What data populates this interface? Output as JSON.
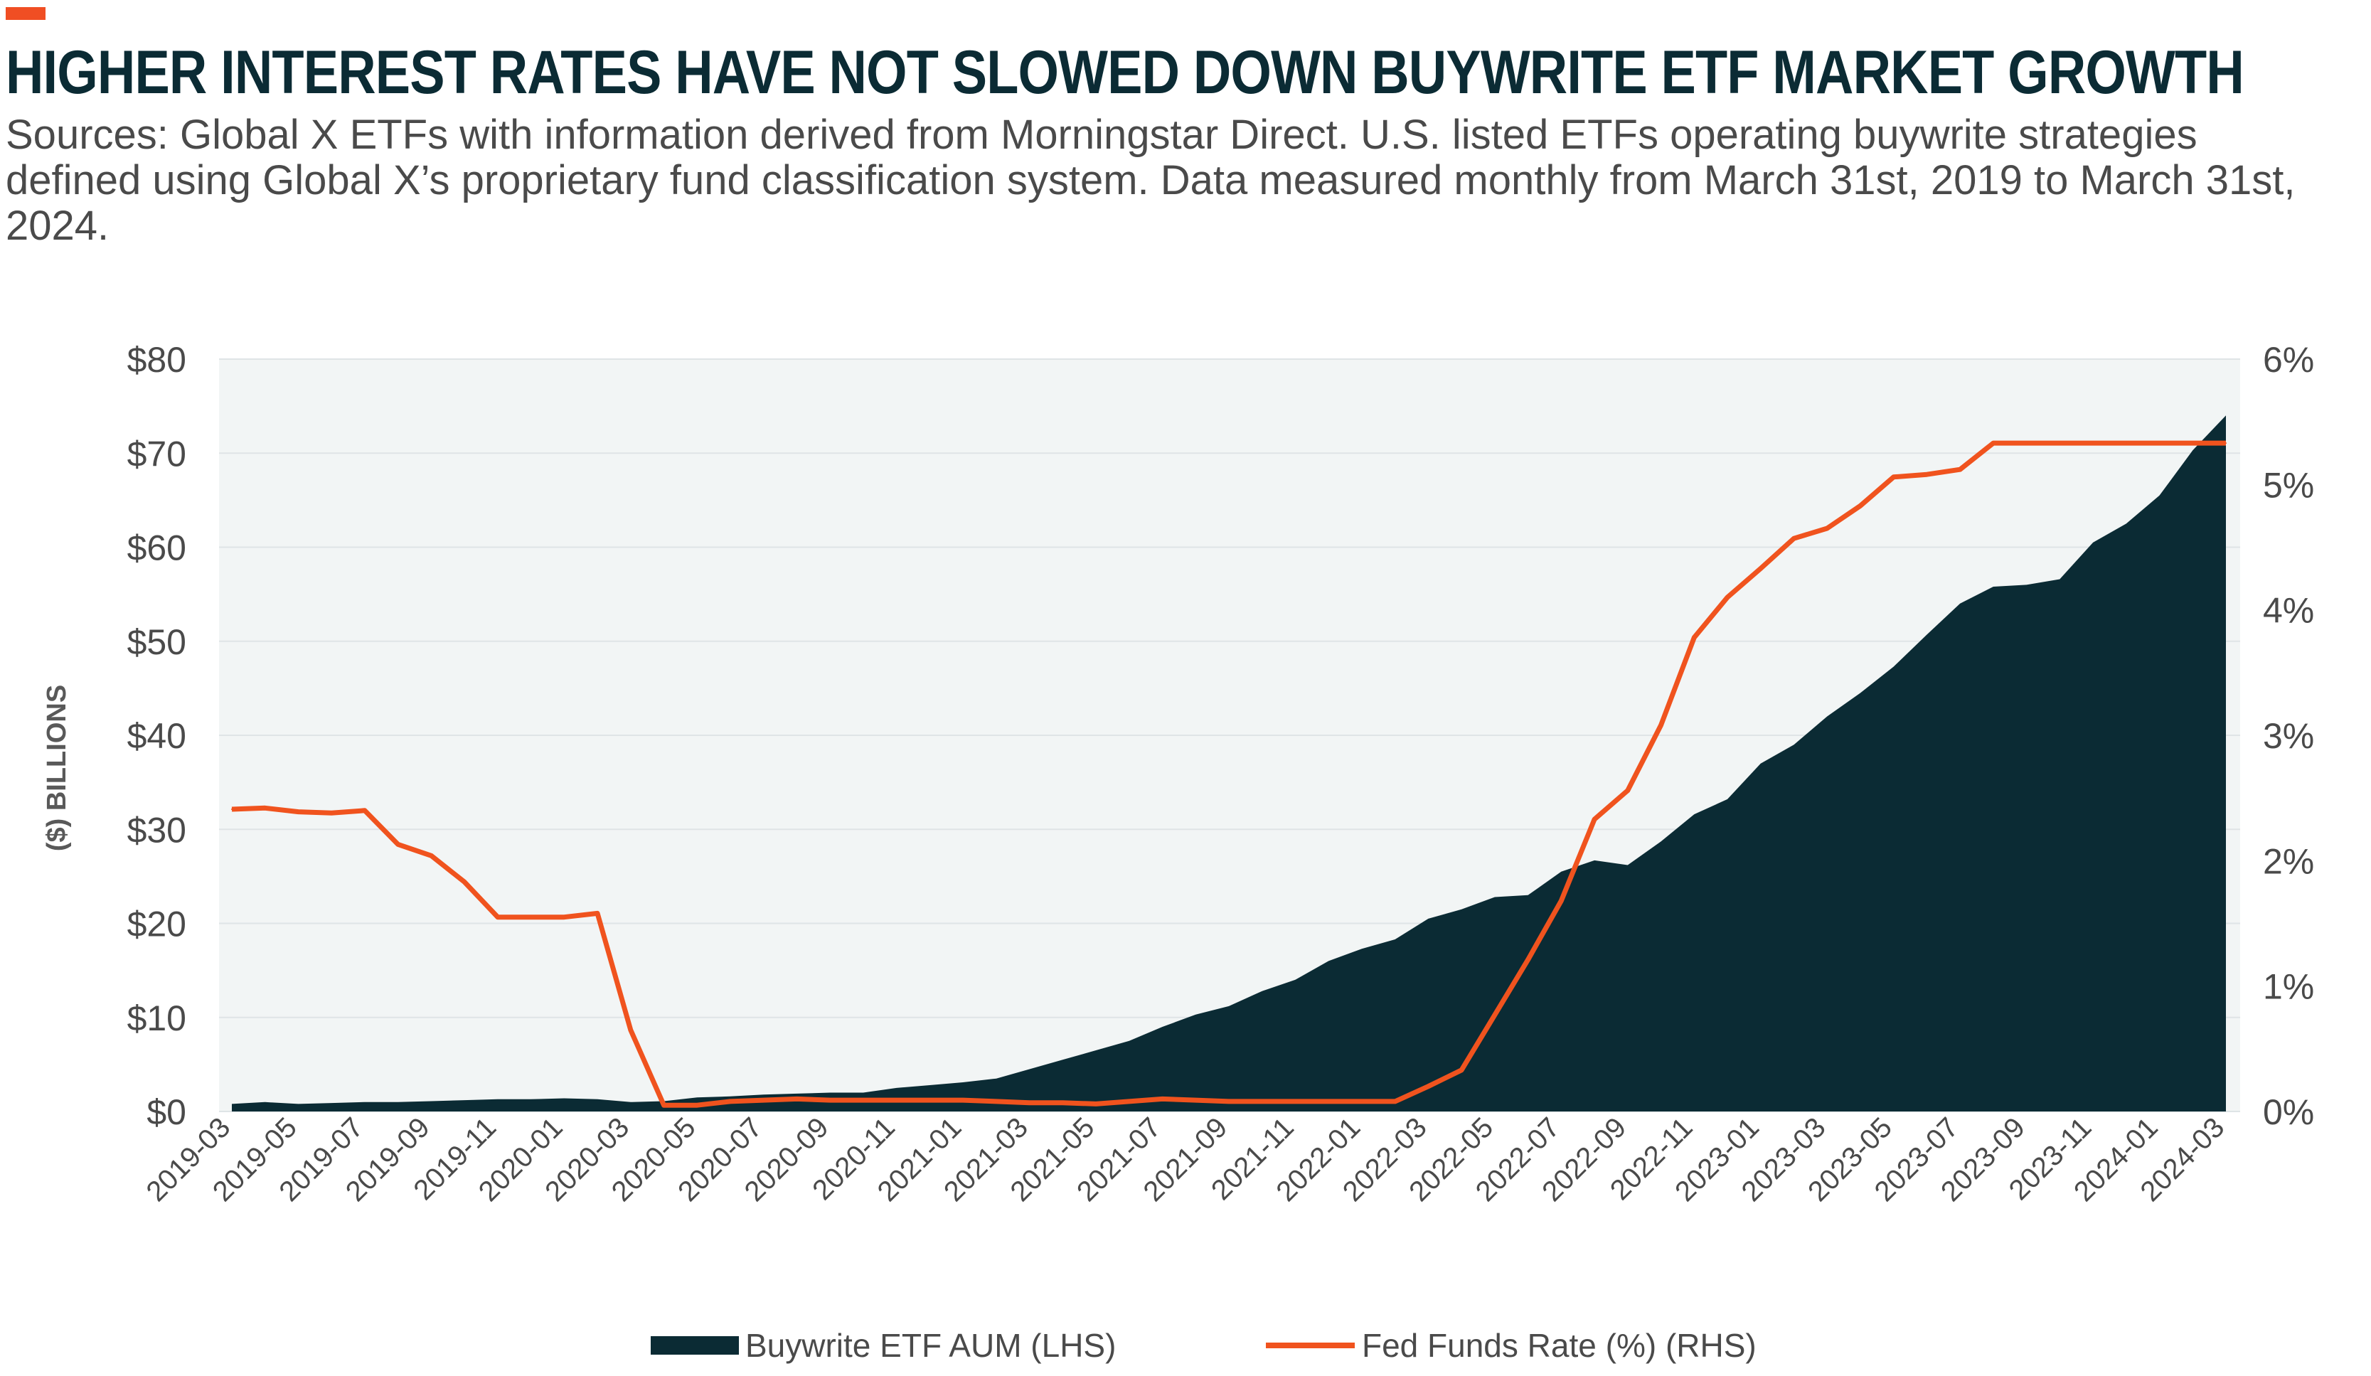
{
  "header": {
    "title": "HIGHER INTEREST RATES HAVE NOT SLOWED DOWN BUYWRITE ETF MARKET GROWTH",
    "subtitle": "Sources: Global X ETFs with information derived from Morningstar Direct. U.S. listed ETFs operating buywrite strategies defined using Global X’s proprietary fund classification system. Data measured monthly from March 31st, 2019 to March 31st, 2024."
  },
  "colors": {
    "accent": "#f04e23",
    "aum_fill": "#0b2b34",
    "rate_line": "#f0531e",
    "plot_bg": "#f2f5f5",
    "grid": "#dfe4e6"
  },
  "chart_data": {
    "type": "area",
    "ylabel": "($) BILLIONS",
    "y_left_ticks": [
      "$0",
      "$10",
      "$20",
      "$30",
      "$40",
      "$50",
      "$60",
      "$70",
      "$80"
    ],
    "y_right_ticks": [
      "0%",
      "1%",
      "2%",
      "3%",
      "4%",
      "5%",
      "6%"
    ],
    "ylim_left": [
      0,
      80
    ],
    "ylim_right": [
      0,
      6
    ],
    "x_tick_labels": [
      "2019-03",
      "2019-05",
      "2019-07",
      "2019-09",
      "2019-11",
      "2020-01",
      "2020-03",
      "2020-05",
      "2020-07",
      "2020-09",
      "2020-11",
      "2021-01",
      "2021-03",
      "2021-05",
      "2021-07",
      "2021-09",
      "2021-11",
      "2022-01",
      "2022-03",
      "2022-05",
      "2022-07",
      "2022-09",
      "2022-11",
      "2023-01",
      "2023-03",
      "2023-05",
      "2023-07",
      "2023-09",
      "2023-11",
      "2024-01",
      "2024-03"
    ],
    "x": [
      "2019-03",
      "2019-04",
      "2019-05",
      "2019-06",
      "2019-07",
      "2019-08",
      "2019-09",
      "2019-10",
      "2019-11",
      "2019-12",
      "2020-01",
      "2020-02",
      "2020-03",
      "2020-04",
      "2020-05",
      "2020-06",
      "2020-07",
      "2020-08",
      "2020-09",
      "2020-10",
      "2020-11",
      "2020-12",
      "2021-01",
      "2021-02",
      "2021-03",
      "2021-04",
      "2021-05",
      "2021-06",
      "2021-07",
      "2021-08",
      "2021-09",
      "2021-10",
      "2021-11",
      "2021-12",
      "2022-01",
      "2022-02",
      "2022-03",
      "2022-04",
      "2022-05",
      "2022-06",
      "2022-07",
      "2022-08",
      "2022-09",
      "2022-10",
      "2022-11",
      "2022-12",
      "2023-01",
      "2023-02",
      "2023-03",
      "2023-04",
      "2023-05",
      "2023-06",
      "2023-07",
      "2023-08",
      "2023-09",
      "2023-10",
      "2023-11",
      "2023-12",
      "2024-01",
      "2024-02",
      "2024-03"
    ],
    "grid": true,
    "legend_position": "bottom",
    "series": [
      {
        "name": "Buywrite ETF AUM (LHS)",
        "type": "area",
        "axis": "left",
        "color": "#0b2b34",
        "values": [
          0.8,
          1.0,
          0.8,
          0.9,
          1.0,
          1.0,
          1.1,
          1.2,
          1.3,
          1.3,
          1.4,
          1.3,
          1.0,
          1.1,
          1.5,
          1.6,
          1.8,
          1.9,
          2.0,
          2.0,
          2.5,
          2.8,
          3.1,
          3.5,
          4.5,
          5.5,
          6.5,
          7.5,
          9.0,
          10.3,
          11.2,
          12.8,
          14.0,
          16.0,
          17.3,
          18.3,
          20.5,
          21.5,
          22.8,
          23.0,
          25.5,
          26.7,
          26.2,
          28.7,
          31.6,
          33.2,
          37.0,
          39.0,
          42.0,
          44.5,
          47.3,
          50.7,
          54.0,
          55.8,
          56.0,
          56.6,
          60.5,
          62.5,
          65.5,
          70.3,
          74.0
        ]
      },
      {
        "name": "Fed Funds Rate (%) (RHS)",
        "type": "line",
        "axis": "right",
        "color": "#f0531e",
        "values": [
          2.41,
          2.42,
          2.39,
          2.38,
          2.4,
          2.13,
          2.04,
          1.83,
          1.55,
          1.55,
          1.55,
          1.58,
          0.65,
          0.05,
          0.05,
          0.08,
          0.09,
          0.1,
          0.09,
          0.09,
          0.09,
          0.09,
          0.09,
          0.08,
          0.07,
          0.07,
          0.06,
          0.08,
          0.1,
          0.09,
          0.08,
          0.08,
          0.08,
          0.08,
          0.08,
          0.08,
          0.2,
          0.33,
          0.77,
          1.21,
          1.68,
          2.33,
          2.56,
          3.08,
          3.78,
          4.1,
          4.33,
          4.57,
          4.65,
          4.83,
          5.06,
          5.08,
          5.12,
          5.33,
          5.33,
          5.33,
          5.33,
          5.33,
          5.33,
          5.33,
          5.33
        ]
      }
    ]
  }
}
